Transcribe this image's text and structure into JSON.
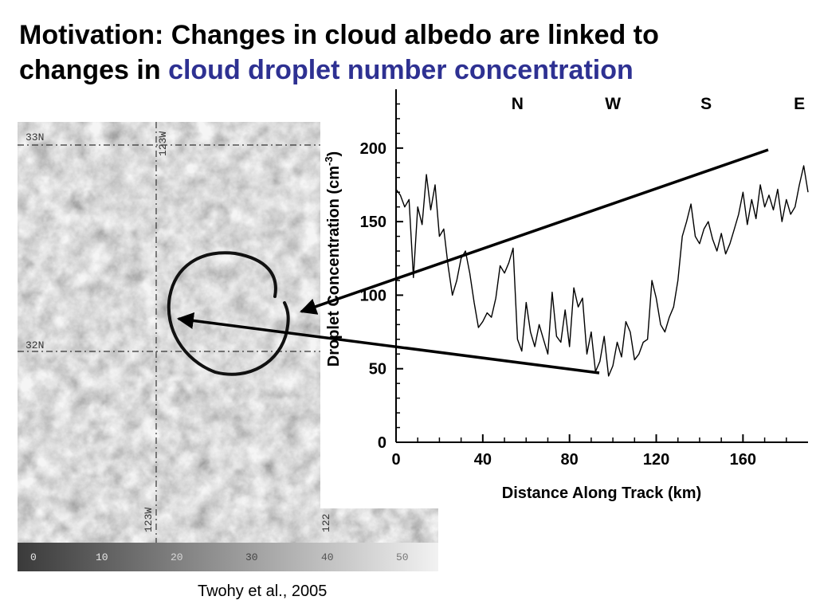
{
  "title": {
    "line1": "Motivation: Changes in cloud albedo are linked to",
    "line2_prefix": "changes in ",
    "line2_highlight": "cloud droplet number concentration",
    "highlight_color": "#2e3192"
  },
  "satellite_image": {
    "lat_labels": [
      "33N",
      "32N"
    ],
    "lon_labels": [
      "123W",
      "123W",
      "122"
    ],
    "colorbar_ticks": [
      "0",
      "10",
      "20",
      "30",
      "40",
      "50"
    ]
  },
  "chart_data": {
    "type": "line",
    "title": "",
    "xlabel": "Distance Along Track (km)",
    "ylabel": "Droplet Concentration (cm",
    "ylabel_superscript": "-3",
    "ylabel_close": ")",
    "xlim": [
      0,
      190
    ],
    "ylim": [
      0,
      240
    ],
    "xticks": [
      0,
      40,
      80,
      120,
      160
    ],
    "yticks": [
      0,
      50,
      100,
      150,
      200
    ],
    "segment_labels": [
      {
        "text": "N",
        "x": 56
      },
      {
        "text": "W",
        "x": 100
      },
      {
        "text": "S",
        "x": 143
      },
      {
        "text": "E",
        "x": 186
      }
    ],
    "series": [
      {
        "x": [
          0,
          2,
          4,
          6,
          8,
          10,
          12,
          14,
          16,
          18,
          20,
          22,
          24,
          26,
          28,
          30,
          32,
          34,
          36,
          38,
          40,
          42,
          44,
          46,
          48,
          50,
          52,
          54,
          56,
          58,
          60,
          62,
          64,
          66,
          68,
          70,
          72,
          74,
          76,
          78,
          80,
          82,
          84,
          86,
          88,
          90,
          92,
          94,
          96,
          98,
          100,
          102,
          104,
          106,
          108,
          110,
          112,
          114,
          116,
          118,
          120,
          122,
          124,
          126,
          128,
          130,
          132,
          134,
          136,
          138,
          140,
          142,
          144,
          146,
          148,
          150,
          152,
          154,
          156,
          158,
          160,
          162,
          164,
          166,
          168,
          170,
          172,
          174,
          176,
          178,
          180,
          182,
          184,
          186,
          188,
          190
        ],
        "values": [
          172,
          168,
          160,
          165,
          112,
          160,
          148,
          182,
          158,
          175,
          140,
          145,
          120,
          100,
          110,
          125,
          130,
          115,
          95,
          78,
          82,
          88,
          85,
          98,
          120,
          115,
          122,
          132,
          70,
          62,
          95,
          75,
          65,
          80,
          70,
          60,
          102,
          72,
          68,
          90,
          65,
          105,
          92,
          98,
          60,
          75,
          48,
          55,
          72,
          45,
          52,
          68,
          58,
          82,
          75,
          56,
          60,
          68,
          70,
          110,
          98,
          80,
          75,
          85,
          92,
          110,
          140,
          150,
          162,
          140,
          135,
          145,
          150,
          138,
          130,
          142,
          128,
          135,
          145,
          155,
          170,
          148,
          165,
          152,
          175,
          160,
          168,
          158,
          172,
          150,
          165,
          155,
          160,
          175,
          188,
          170
        ]
      }
    ]
  },
  "citation": "Twohy et al., 2005"
}
